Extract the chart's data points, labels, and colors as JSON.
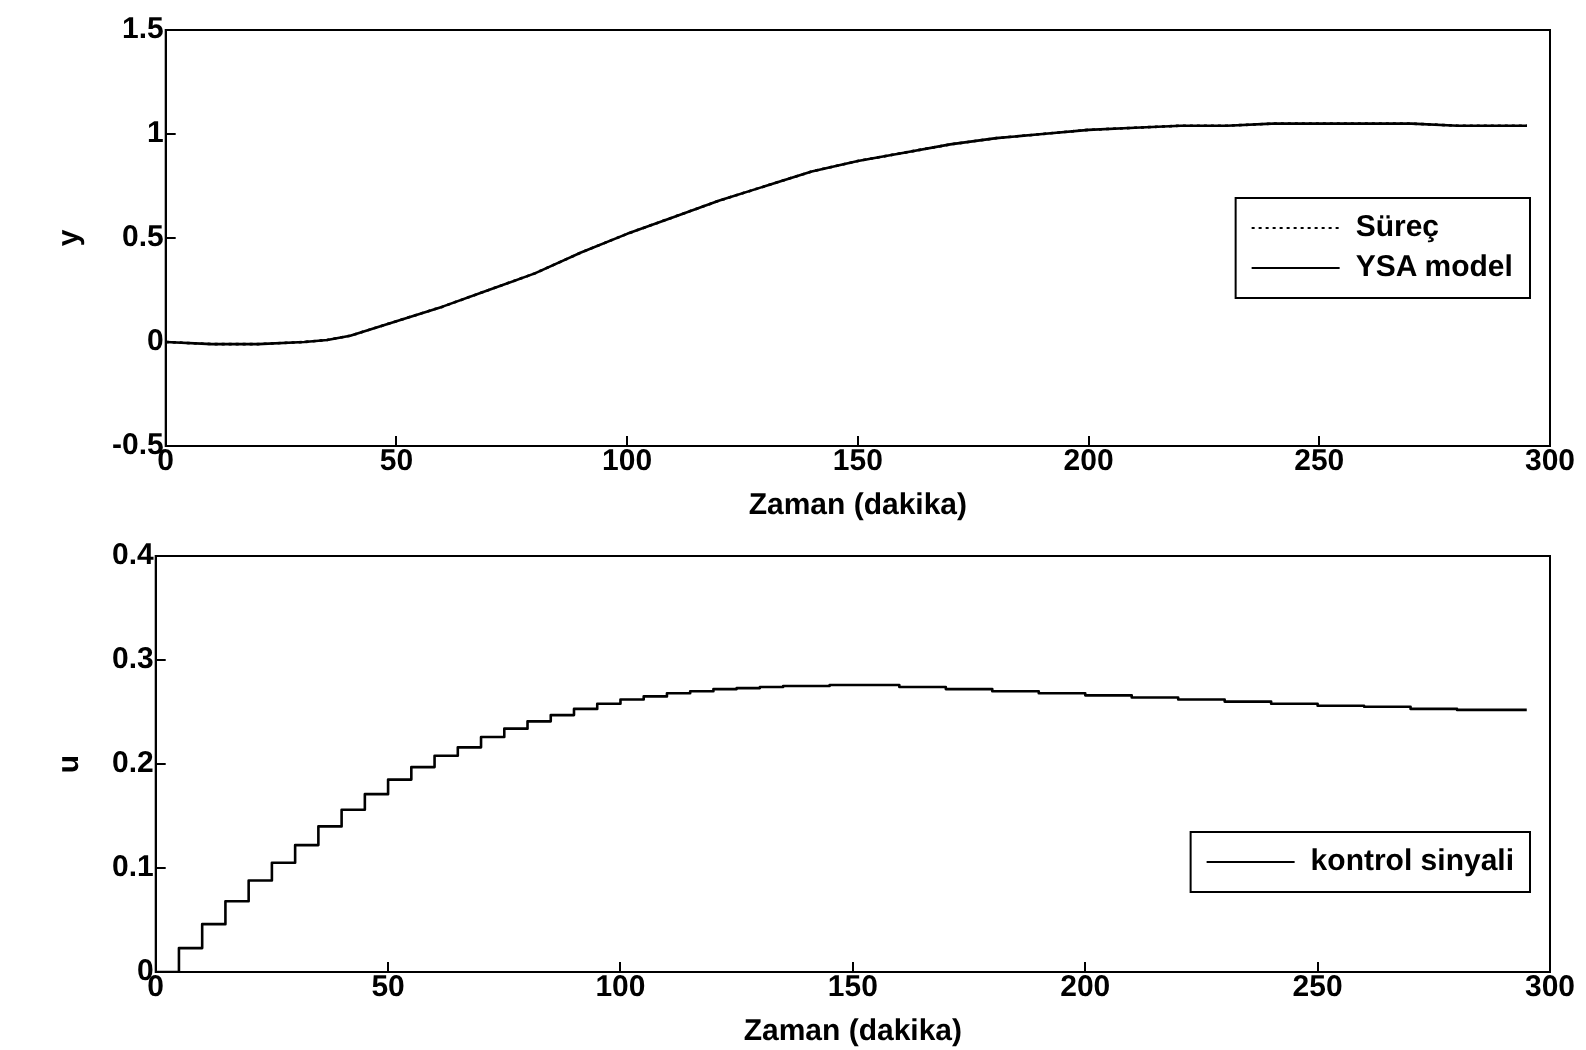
{
  "chart_data": [
    {
      "type": "line",
      "xlabel": "Zaman (dakika)",
      "ylabel": "y",
      "xlim": [
        0,
        300
      ],
      "xticks": [
        0,
        50,
        100,
        150,
        200,
        250,
        300
      ],
      "ylim": [
        -0.5,
        1.5
      ],
      "yticks": [
        -0.5,
        0,
        0.5,
        1,
        1.5
      ],
      "legend": "right",
      "grid": false,
      "marker": "none",
      "x": [
        0,
        10,
        20,
        30,
        35,
        40,
        50,
        60,
        70,
        80,
        90,
        100,
        110,
        120,
        130,
        140,
        150,
        160,
        170,
        180,
        190,
        200,
        210,
        220,
        230,
        240,
        250,
        260,
        270,
        280,
        295
      ],
      "series": [
        {
          "name": "Süreç",
          "color": "#000000",
          "line_style": "dotted",
          "values": [
            0,
            -0.01,
            -0.01,
            0,
            0.01,
            0.03,
            0.1,
            0.17,
            0.25,
            0.33,
            0.43,
            0.52,
            0.6,
            0.68,
            0.75,
            0.82,
            0.87,
            0.91,
            0.95,
            0.98,
            1.0,
            1.02,
            1.03,
            1.04,
            1.04,
            1.05,
            1.05,
            1.05,
            1.05,
            1.04,
            1.04
          ]
        },
        {
          "name": "YSA model",
          "color": "#000000",
          "line_style": "solid",
          "values": [
            0,
            -0.01,
            -0.01,
            0,
            0.01,
            0.03,
            0.1,
            0.17,
            0.25,
            0.33,
            0.43,
            0.52,
            0.6,
            0.68,
            0.75,
            0.82,
            0.87,
            0.91,
            0.95,
            0.98,
            1.0,
            1.02,
            1.03,
            1.04,
            1.04,
            1.05,
            1.05,
            1.05,
            1.05,
            1.04,
            1.04
          ]
        }
      ]
    },
    {
      "type": "step",
      "xlabel": "Zaman (dakika)",
      "ylabel": "u",
      "xlim": [
        0,
        300
      ],
      "xticks": [
        0,
        50,
        100,
        150,
        200,
        250,
        300
      ],
      "ylim": [
        0,
        0.4
      ],
      "yticks": [
        0,
        0.1,
        0.2,
        0.3,
        0.4
      ],
      "legend": "bottom right",
      "grid": false,
      "marker": "none",
      "x": [
        0,
        5,
        10,
        15,
        20,
        25,
        30,
        35,
        40,
        45,
        50,
        55,
        60,
        65,
        70,
        75,
        80,
        85,
        90,
        95,
        100,
        105,
        110,
        115,
        120,
        125,
        130,
        135,
        140,
        145,
        150,
        160,
        170,
        180,
        190,
        200,
        210,
        220,
        230,
        240,
        250,
        260,
        270,
        280,
        290,
        295
      ],
      "series": [
        {
          "name": "kontrol sinyali",
          "color": "#000000",
          "line_style": "solid",
          "values": [
            0,
            0.023,
            0.046,
            0.068,
            0.088,
            0.105,
            0.122,
            0.14,
            0.156,
            0.171,
            0.185,
            0.197,
            0.208,
            0.216,
            0.226,
            0.234,
            0.241,
            0.247,
            0.253,
            0.258,
            0.262,
            0.265,
            0.268,
            0.27,
            0.272,
            0.273,
            0.274,
            0.275,
            0.275,
            0.276,
            0.276,
            0.274,
            0.272,
            0.27,
            0.268,
            0.266,
            0.264,
            0.262,
            0.26,
            0.258,
            0.256,
            0.255,
            0.253,
            0.252,
            0.252,
            0.252
          ]
        }
      ]
    }
  ]
}
